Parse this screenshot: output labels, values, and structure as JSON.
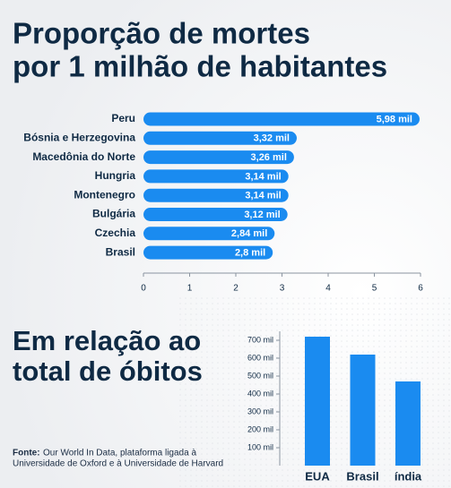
{
  "chart_data": [
    {
      "type": "hbar",
      "title": [
        "Proporção de mortes",
        "por 1 milhão de habitantes"
      ],
      "categories": [
        "Peru",
        "Bósnia e Herzegovina",
        "Macedônia do Norte",
        "Hungria",
        "Montenegro",
        "Bulgária",
        "Czechia",
        "Brasil"
      ],
      "values": [
        5.98,
        3.32,
        3.26,
        3.14,
        3.14,
        3.12,
        2.84,
        2.8
      ],
      "value_labels": [
        "5,98 mil",
        "3,32 mil",
        "3,26 mil",
        "3,14 mil",
        "3,14 mil",
        "3,12 mil",
        "2,84 mil",
        "2,8 mil"
      ],
      "color": "#1a8bf0",
      "xlim": [
        0,
        6
      ],
      "xticks": [
        0,
        1,
        2,
        3,
        4,
        5,
        6
      ]
    },
    {
      "type": "bar",
      "title": [
        "Em relação ao",
        "total de óbitos"
      ],
      "categories": [
        "EUA",
        "Brasil",
        "índia"
      ],
      "values": [
        720,
        620,
        470
      ],
      "color": "#1a8bf0",
      "ylim": [
        0,
        750
      ],
      "yticks": [
        {
          "value": 100,
          "label": "100 mil"
        },
        {
          "value": 200,
          "label": "200 mil"
        },
        {
          "value": 300,
          "label": "300 mil"
        },
        {
          "value": 400,
          "label": "400 mil"
        },
        {
          "value": 500,
          "label": "500 mil"
        },
        {
          "value": 600,
          "label": "600 mil"
        },
        {
          "value": 700,
          "label": "700 mil"
        }
      ]
    }
  ],
  "source_label": "Fonte:",
  "source": [
    "Our World In Data, plataforma ligada à",
    "Universidade  de Oxford e à Universidade de Harvard"
  ]
}
